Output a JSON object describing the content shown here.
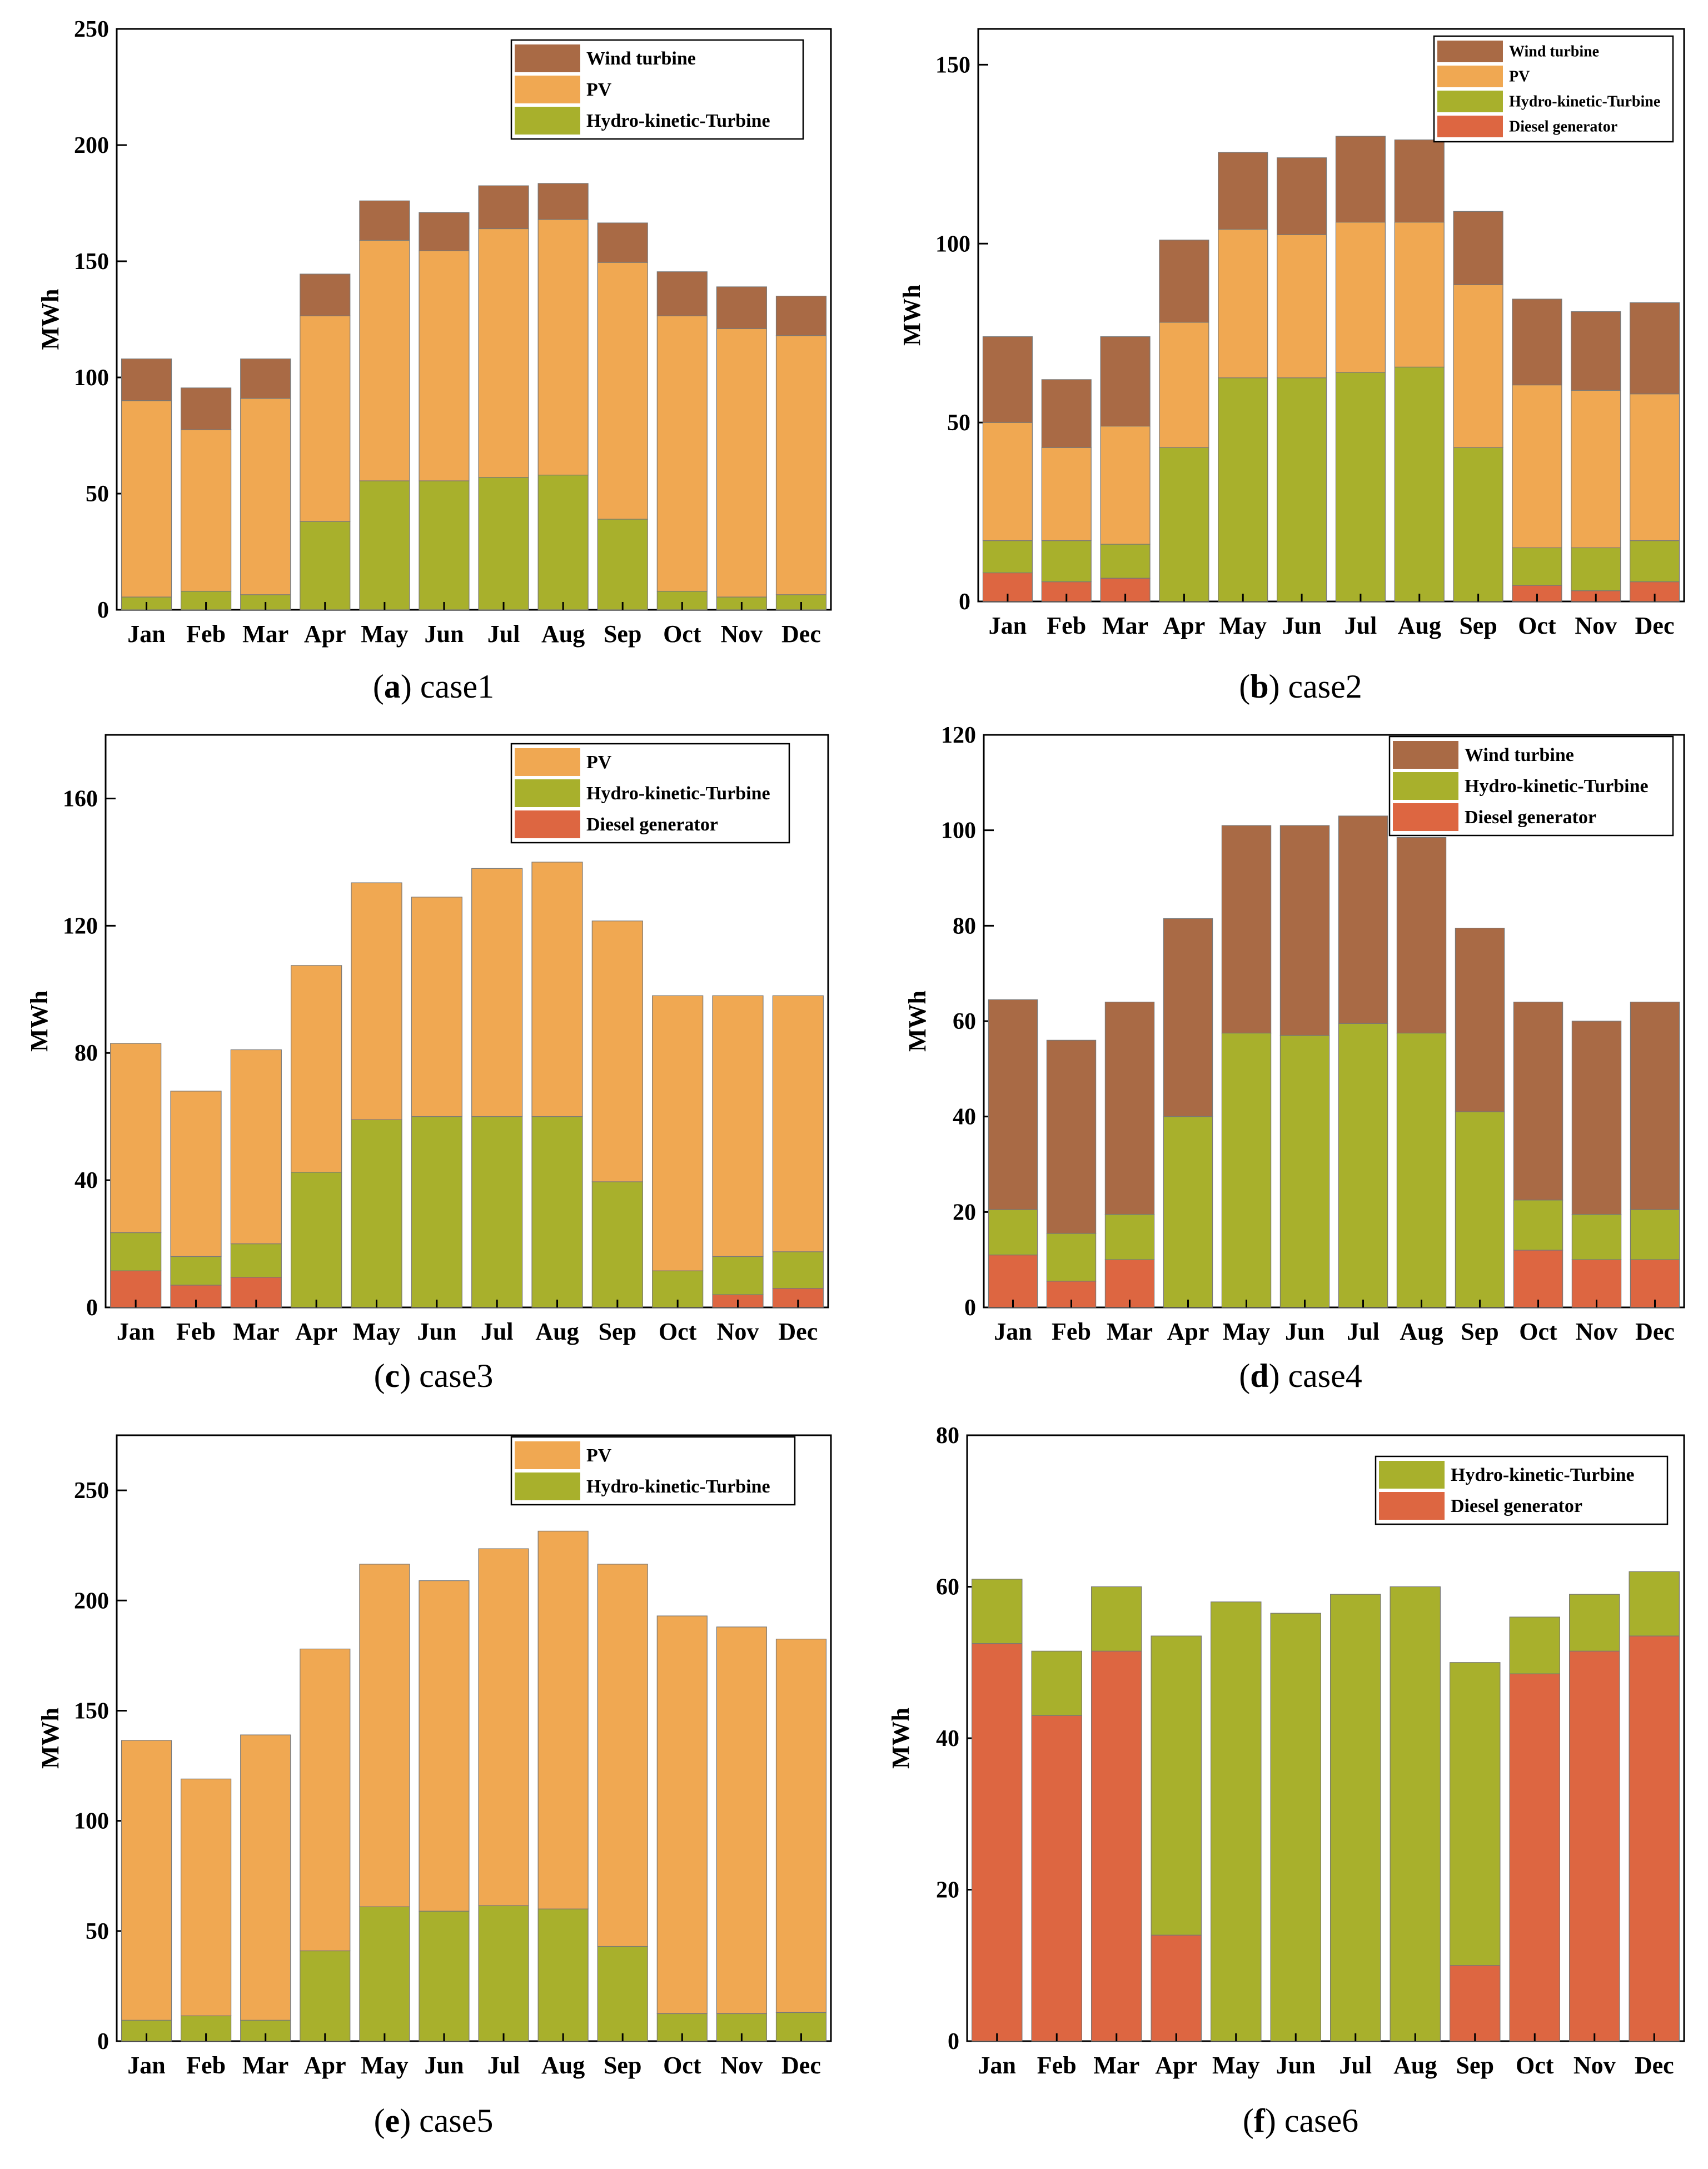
{
  "colors": {
    "Wind turbine": "#a96a45",
    "PV": "#f0a852",
    "Hydro-kinetic-Turbine": "#a8b02c",
    "Diesel generator": "#dd6641",
    "axis": "#000000",
    "edge": "#777777"
  },
  "chart_data": [
    {
      "id": "case1",
      "type": "bar",
      "stacked": true,
      "caption_letter": "a",
      "caption_label": "case1",
      "ylabel": "MWh",
      "xlabel": "",
      "ylim": [
        0,
        250
      ],
      "yticks": [
        0,
        50,
        100,
        150,
        200,
        250
      ],
      "categories": [
        "Jan",
        "Feb",
        "Mar",
        "Apr",
        "May",
        "Jun",
        "Jul",
        "Aug",
        "Sep",
        "Oct",
        "Nov",
        "Dec"
      ],
      "legend_position": "top-right",
      "legend": [
        "Wind turbine",
        "PV",
        "Hydro-kinetic-Turbine"
      ],
      "series": [
        {
          "name": "Hydro-kinetic-Turbine",
          "values": [
            5.5,
            8,
            6.5,
            38,
            55.5,
            55.5,
            57,
            58,
            39,
            8,
            5.5,
            6.5
          ]
        },
        {
          "name": "PV",
          "values": [
            84.5,
            69.5,
            84.5,
            88.5,
            103.5,
            99,
            107,
            110,
            110.5,
            118.5,
            115.5,
            111.5
          ]
        },
        {
          "name": "Wind turbine",
          "values": [
            18,
            18,
            17,
            18,
            17,
            16.5,
            18.5,
            15.5,
            17,
            19,
            18,
            17
          ]
        }
      ]
    },
    {
      "id": "case2",
      "type": "bar",
      "stacked": true,
      "caption_letter": "b",
      "caption_label": "case2",
      "ylabel": "MWh",
      "xlabel": "",
      "ylim": [
        0,
        160
      ],
      "yticks": [
        0,
        50,
        100,
        150
      ],
      "categories": [
        "Jan",
        "Feb",
        "Mar",
        "Apr",
        "May",
        "Jun",
        "Jul",
        "Aug",
        "Sep",
        "Oct",
        "Nov",
        "Dec"
      ],
      "legend_position": "top-right",
      "legend": [
        "Wind turbine",
        "PV",
        "Hydro-kinetic-Turbine",
        "Diesel generator"
      ],
      "series": [
        {
          "name": "Diesel generator",
          "values": [
            8,
            5.5,
            6.5,
            0,
            0,
            0,
            0,
            0,
            0,
            4.5,
            3,
            5.5
          ]
        },
        {
          "name": "Hydro-kinetic-Turbine",
          "values": [
            9,
            11.5,
            9.5,
            43,
            62.5,
            62.5,
            64,
            65.5,
            43,
            10.5,
            12,
            11.5
          ]
        },
        {
          "name": "PV",
          "values": [
            33,
            26,
            33,
            35,
            41.5,
            40,
            42,
            40.5,
            45.5,
            45.5,
            44,
            41
          ]
        },
        {
          "name": "Wind turbine",
          "values": [
            24,
            19,
            25,
            23,
            21.5,
            21.5,
            24,
            23,
            20.5,
            24,
            22,
            25.5
          ]
        }
      ]
    },
    {
      "id": "case3",
      "type": "bar",
      "stacked": true,
      "caption_letter": "c",
      "caption_label": "case3",
      "ylabel": "MWh",
      "xlabel": "",
      "ylim": [
        0,
        180
      ],
      "yticks": [
        0,
        40,
        80,
        120,
        160
      ],
      "categories": [
        "Jan",
        "Feb",
        "Mar",
        "Apr",
        "May",
        "Jun",
        "Jul",
        "Aug",
        "Sep",
        "Oct",
        "Nov",
        "Dec"
      ],
      "legend_position": "top-right",
      "legend": [
        "PV",
        "Hydro-kinetic-Turbine",
        "Diesel generator"
      ],
      "series": [
        {
          "name": "Diesel generator",
          "values": [
            11.5,
            7,
            9.5,
            0,
            0,
            0,
            0,
            0,
            0,
            0,
            4,
            6
          ]
        },
        {
          "name": "Hydro-kinetic-Turbine",
          "values": [
            12,
            9,
            10.5,
            42.5,
            59,
            60,
            60,
            60,
            39.5,
            11.5,
            12,
            11.5
          ]
        },
        {
          "name": "PV",
          "values": [
            59.5,
            52,
            61,
            65,
            74.5,
            69,
            78,
            80,
            82,
            86.5,
            82,
            80.5
          ]
        }
      ]
    },
    {
      "id": "case4",
      "type": "bar",
      "stacked": true,
      "caption_letter": "d",
      "caption_label": "case4",
      "ylabel": "MWh",
      "xlabel": "",
      "ylim": [
        0,
        120
      ],
      "yticks": [
        0,
        20,
        40,
        60,
        80,
        100,
        120
      ],
      "categories": [
        "Jan",
        "Feb",
        "Mar",
        "Apr",
        "May",
        "Jun",
        "Jul",
        "Aug",
        "Sep",
        "Oct",
        "Nov",
        "Dec"
      ],
      "legend_position": "top-right",
      "legend": [
        "Wind turbine",
        "Hydro-kinetic-Turbine",
        "Diesel generator"
      ],
      "series": [
        {
          "name": "Diesel generator",
          "values": [
            11,
            5.5,
            10,
            0,
            0,
            0,
            0,
            0,
            0,
            12,
            10,
            10
          ]
        },
        {
          "name": "Hydro-kinetic-Turbine",
          "values": [
            9.5,
            10,
            9.5,
            40,
            57.5,
            57,
            59.5,
            57.5,
            41,
            10.5,
            9.5,
            10.5
          ]
        },
        {
          "name": "Wind turbine",
          "values": [
            44,
            40.5,
            44.5,
            41.5,
            43.5,
            44,
            43.5,
            41,
            38.5,
            41.5,
            40.5,
            43.5
          ]
        }
      ]
    },
    {
      "id": "case5",
      "type": "bar",
      "stacked": true,
      "caption_letter": "e",
      "caption_label": "case5",
      "ylabel": "MWh",
      "xlabel": "",
      "ylim": [
        0,
        275
      ],
      "yticks": [
        0,
        50,
        100,
        150,
        200,
        250
      ],
      "categories": [
        "Jan",
        "Feb",
        "Mar",
        "Apr",
        "May",
        "Jun",
        "Jul",
        "Aug",
        "Sep",
        "Oct",
        "Nov",
        "Dec"
      ],
      "legend_position": "top-right",
      "legend": [
        "PV",
        "Hydro-kinetic-Turbine"
      ],
      "series": [
        {
          "name": "Hydro-kinetic-Turbine",
          "values": [
            9.5,
            11.5,
            9.5,
            41,
            61,
            59,
            61.5,
            60,
            43,
            12.5,
            12.5,
            13
          ]
        },
        {
          "name": "PV",
          "values": [
            127,
            107.5,
            129.5,
            137,
            155.5,
            150,
            162,
            171.5,
            173.5,
            180.5,
            175.5,
            169.5
          ]
        }
      ]
    },
    {
      "id": "case6",
      "type": "bar",
      "stacked": true,
      "caption_letter": "f",
      "caption_label": "case6",
      "ylabel": "MWh",
      "xlabel": "",
      "ylim": [
        0,
        80
      ],
      "yticks": [
        0,
        20,
        40,
        60,
        80
      ],
      "categories": [
        "Jan",
        "Feb",
        "Mar",
        "Apr",
        "May",
        "Jun",
        "Jul",
        "Aug",
        "Sep",
        "Oct",
        "Nov",
        "Dec"
      ],
      "legend_position": "top-right",
      "legend": [
        "Hydro-kinetic-Turbine",
        "Diesel generator"
      ],
      "series": [
        {
          "name": "Diesel generator",
          "values": [
            52.5,
            43,
            51.5,
            14,
            0,
            0,
            0,
            0,
            10,
            48.5,
            51.5,
            53.5
          ]
        },
        {
          "name": "Hydro-kinetic-Turbine",
          "values": [
            8.5,
            8.5,
            8.5,
            39.5,
            58,
            56.5,
            59,
            60,
            40,
            7.5,
            7.5,
            8.5
          ]
        }
      ]
    }
  ]
}
